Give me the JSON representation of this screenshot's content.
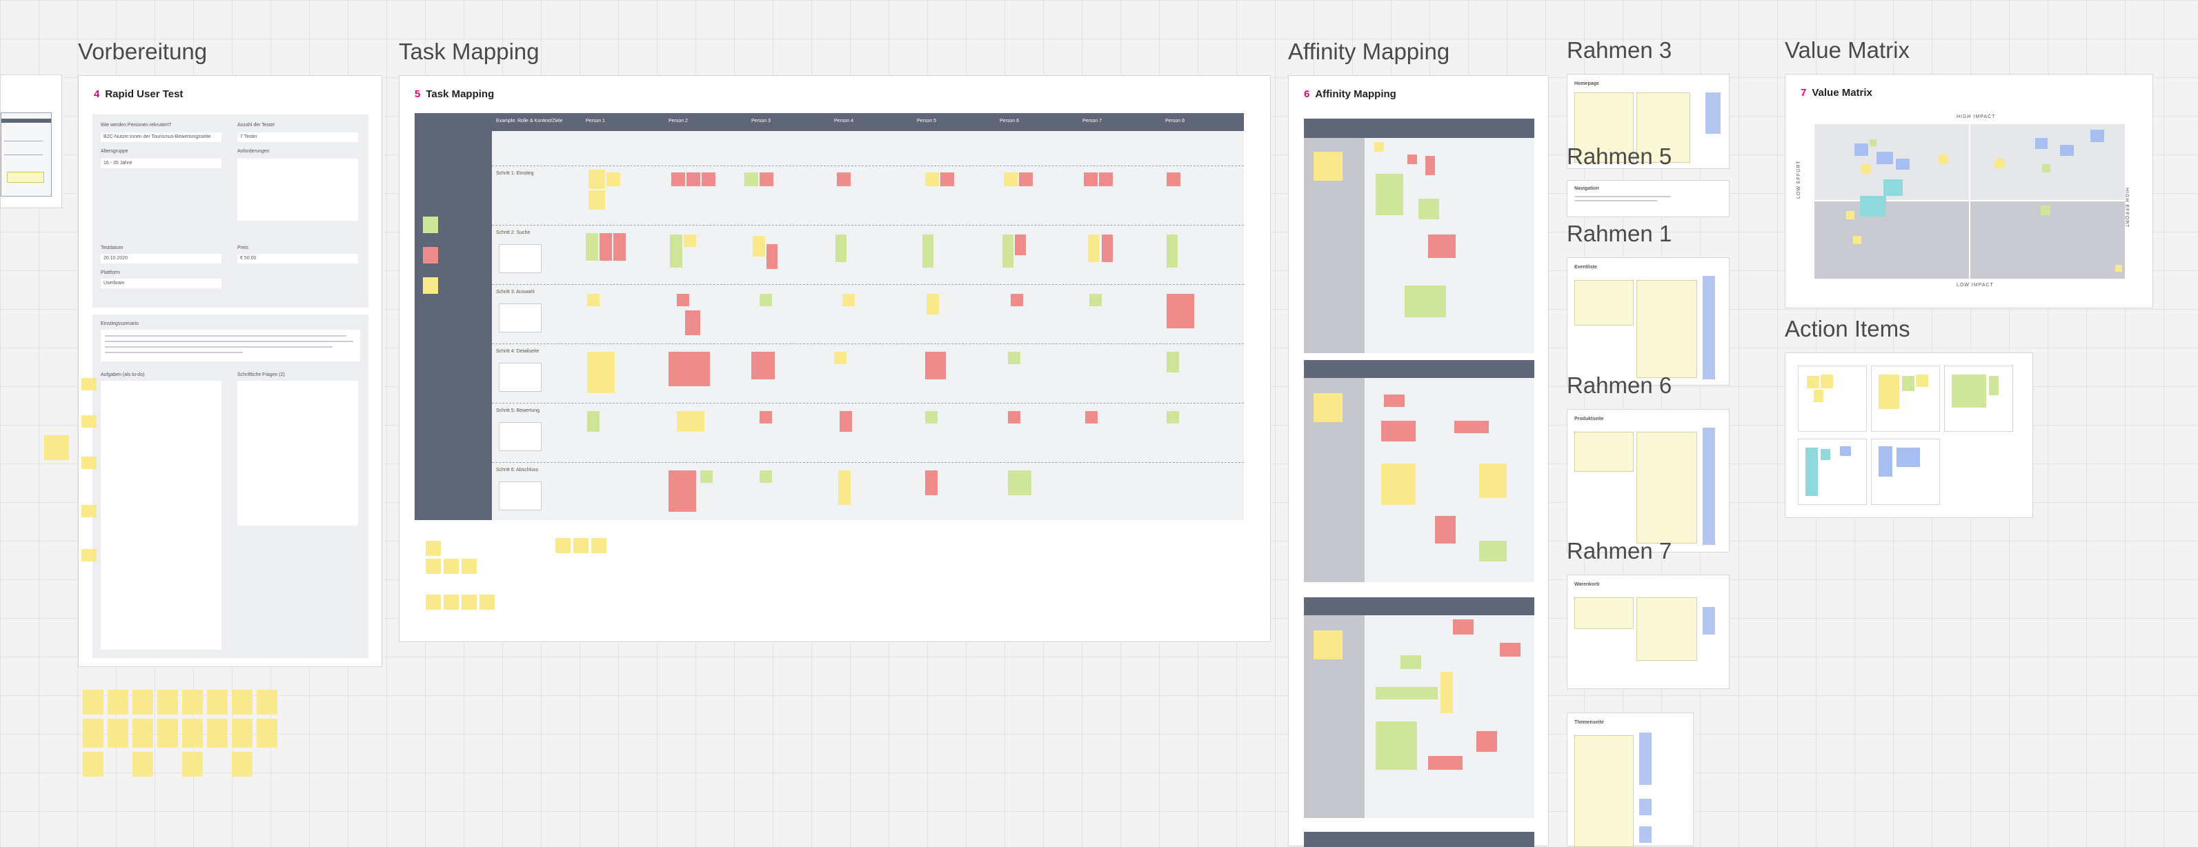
{
  "frames": {
    "vorbereitung": {
      "title": "Vorbereitung"
    },
    "task_mapping": {
      "title": "Task Mapping"
    },
    "affinity_mapping": {
      "title": "Affinity Mapping"
    },
    "rahmen3": {
      "title": "Rahmen 3"
    },
    "rahmen5": {
      "title": "Rahmen 5"
    },
    "rahmen1": {
      "title": "Rahmen 1"
    },
    "rahmen6": {
      "title": "Rahmen 6"
    },
    "rahmen7": {
      "title": "Rahmen 7"
    },
    "value_matrix": {
      "title": "Value Matrix"
    },
    "action_items": {
      "title": "Action Items"
    }
  },
  "cards": {
    "rapid_user_test": {
      "num": "4",
      "label": "Rapid User Test"
    },
    "task_mapping": {
      "num": "5",
      "label": "Task Mapping"
    },
    "affinity_mapping": {
      "num": "6",
      "label": "Affinity Mapping"
    },
    "value_matrix": {
      "num": "7",
      "label": "Value Matrix"
    }
  },
  "rapid_test_fields": {
    "q_where": "Wie werden Personen rekrutiert?",
    "a_where": "B2C-Nutzer:innen der Tourismus-Bewertungsseite",
    "q_count": "Anzahl der Tester",
    "a_count": "7 Tester",
    "q_target": "Altersgruppe",
    "a_target": "16 - 35 Jahre",
    "q_goal": "Anforderungen",
    "q_date": "Testdatum",
    "a_date": "20.10.2020",
    "q_price": "Preis",
    "a_price": "€ 50.00",
    "q_place": "Plattform",
    "a_place": "Userbrain",
    "q_scenario": "Einstiegsszenario",
    "q_tasks": "Aufgaben (als to-do)",
    "q_questions": "Schriftliche Fragen (2)"
  },
  "task_mapping_table": {
    "headers": [
      "Example: Rolle & Kontext/Ziele",
      "Person 1",
      "Person 2",
      "Person 3",
      "Person 4",
      "Person 5",
      "Person 6",
      "Person 7",
      "Person 8"
    ],
    "rows": [
      "Schritt 1: Einstieg",
      "Schritt 2: Suche",
      "Schritt 3: Auswahl",
      "Schritt 4: Detailseite",
      "Schritt 5: Bewertung",
      "Schritt 6: Abschluss"
    ]
  },
  "rahmen_cards": {
    "rahmen3": "Homepage",
    "rahmen5": "Navigation",
    "rahmen1": "Eventliste",
    "rahmen6": "Produktseite",
    "rahmen7": "Warenkorb",
    "bottom": "Themenseite"
  },
  "value_matrix": {
    "top": "HIGH IMPACT",
    "bottom": "LOW IMPACT",
    "left": "LOW EFFORT",
    "right": "HIGH EFFORT"
  },
  "colors": {
    "accent": "#e2007a",
    "sticky_yellow": "#f9e98a",
    "sticky_red": "#ee8b8b",
    "sticky_green": "#cfe69a",
    "sticky_blue": "#a7bff0",
    "sidebar_navy": "#5f6677"
  }
}
